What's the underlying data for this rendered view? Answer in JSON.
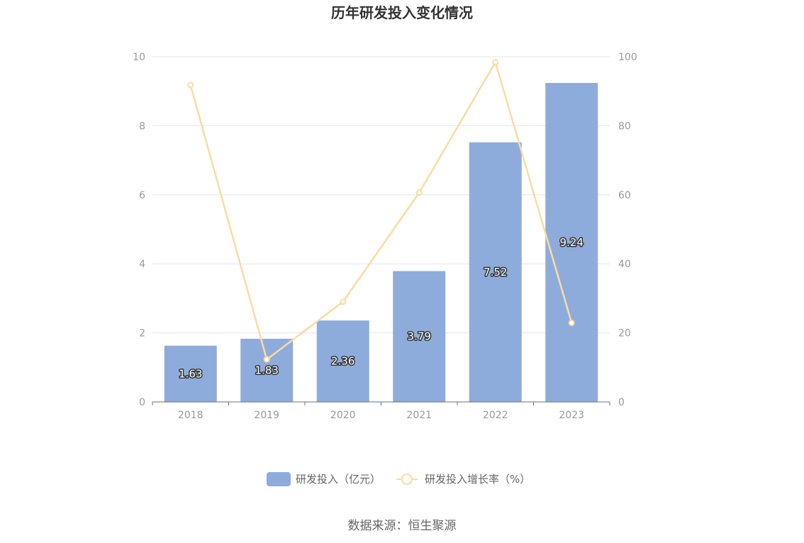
{
  "chart_data": {
    "type": "bar",
    "title": "历年研发投入变化情况",
    "categories": [
      "2018",
      "2019",
      "2020",
      "2021",
      "2022",
      "2023"
    ],
    "series": [
      {
        "name": "研发投入（亿元）",
        "type": "bar",
        "axis": "left",
        "values": [
          1.63,
          1.83,
          2.36,
          3.79,
          7.52,
          9.24
        ],
        "labels": [
          "1.63",
          "1.83",
          "2.36",
          "3.79",
          "7.52",
          "9.24"
        ]
      },
      {
        "name": "研发投入增长率（%）",
        "type": "line",
        "axis": "right",
        "values": [
          91.8,
          12.3,
          29.0,
          60.6,
          98.4,
          22.9
        ]
      }
    ],
    "y_left": {
      "min": 0,
      "max": 10,
      "ticks": [
        "0",
        "2",
        "4",
        "6",
        "8",
        "10"
      ]
    },
    "y_right": {
      "min": 0,
      "max": 100,
      "ticks": [
        "0",
        "20",
        "40",
        "60",
        "80",
        "100"
      ]
    },
    "grid": true,
    "legend_position": "bottom",
    "colors": {
      "bar": "#8eacdb",
      "line": "#fcdba0",
      "grid": "#e0e6f1",
      "axis": "#6e7079"
    }
  },
  "source": "数据来源：恒生聚源"
}
